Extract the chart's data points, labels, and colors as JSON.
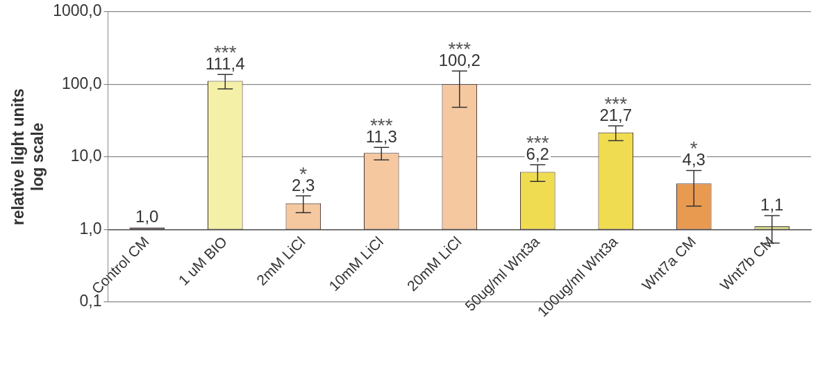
{
  "chart_data": {
    "type": "bar",
    "ylabel": "relative light units\nlog scale",
    "categories": [
      "Control CM",
      "1 uM BIO",
      "2mM LiCl",
      "10mM LiCl",
      "20mM LiCl",
      "50ug/ml Wnt3a",
      "100ug/ml Wnt3a",
      "Wnt7a CM",
      "Wnt7b CM"
    ],
    "base": [
      1,
      1,
      1,
      1,
      1,
      1,
      1,
      1,
      1
    ],
    "values": [
      0,
      110.4,
      1.3,
      10.3,
      99.2,
      5.2,
      20.7,
      3.3,
      0.1
    ],
    "ref_lines": [
      {
        "axis": "y",
        "value": 1,
        "color": "#555555"
      }
    ],
    "value_labels": [
      "1,0",
      "111,4",
      "2,3",
      "11,3",
      "100,2",
      "6,2",
      "21,7",
      "4,3",
      "1,1"
    ],
    "errors": [
      null,
      25,
      0.6,
      2.2,
      52,
      1.6,
      5,
      2.2,
      0.45
    ],
    "colors": [
      "#333333",
      "#f5f0a8",
      "#f5c8a0",
      "#f5c8a0",
      "#f5c8a0",
      "#f0dc50",
      "#f0dc50",
      "#e89a50",
      "#e0e890"
    ],
    "log": true,
    "ylim": [
      0.1,
      1000
    ],
    "yticks": [
      {
        "value": 0.1,
        "label": "0,1"
      },
      {
        "value": 1,
        "label": "1,0"
      },
      {
        "value": 10,
        "label": "10,0"
      },
      {
        "value": 100,
        "label": "100,0"
      },
      {
        "value": 1000,
        "label": "1000,0"
      }
    ],
    "grid": "y",
    "legend": false,
    "annotations": [
      {
        "text": "***",
        "x": "1 uM BIO",
        "y": 111.4
      },
      {
        "text": "*",
        "x": "2mM LiCl",
        "y": 2.3
      },
      {
        "text": "***",
        "x": "10mM LiCl",
        "y": 11.3
      },
      {
        "text": "***",
        "x": "20mM LiCl",
        "y": 100.2
      },
      {
        "text": "***",
        "x": "50ug/ml Wnt3a",
        "y": 6.2
      },
      {
        "text": "***",
        "x": "100ug/ml Wnt3a",
        "y": 21.7
      },
      {
        "text": "*",
        "x": "Wnt7a CM",
        "y": 4.3
      }
    ]
  }
}
